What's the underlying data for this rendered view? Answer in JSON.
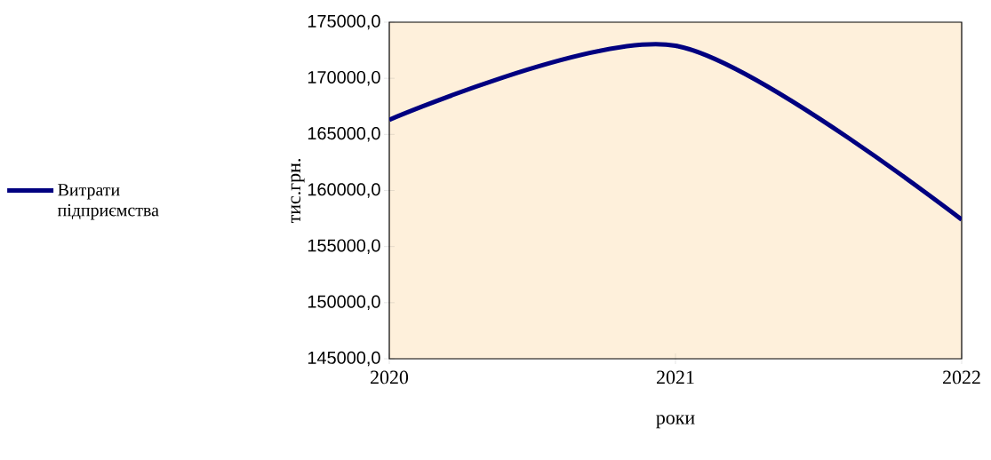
{
  "chart_data": {
    "type": "line",
    "xlabel": "роки",
    "ylabel": "тис.грн.",
    "x": [
      2020,
      2021,
      2022
    ],
    "series": [
      {
        "name": "Витрати підприємства",
        "color": "#000080",
        "values": [
          166300,
          172900,
          157400
        ]
      }
    ],
    "xlim": [
      2020,
      2022
    ],
    "xticks": [
      2020,
      2021,
      2022
    ],
    "ylim": [
      145000,
      175000
    ],
    "yticks": [
      {
        "value": 145000,
        "label": "145000,0"
      },
      {
        "value": 150000,
        "label": "150000,0"
      },
      {
        "value": 155000,
        "label": "155000,0"
      },
      {
        "value": 160000,
        "label": "160000,0"
      },
      {
        "value": 165000,
        "label": "165000,0"
      },
      {
        "value": 170000,
        "label": "170000,0"
      },
      {
        "value": 175000,
        "label": "175000,0"
      }
    ],
    "legend": "left",
    "grid": false
  }
}
